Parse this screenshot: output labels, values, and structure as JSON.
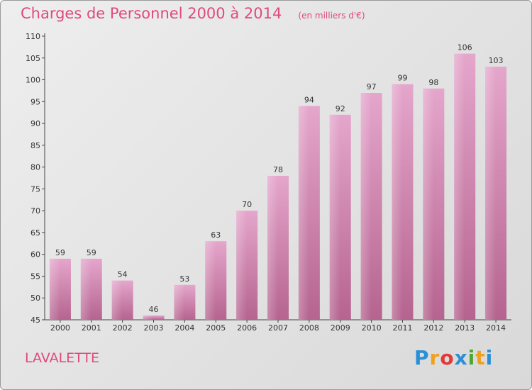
{
  "chart_data": {
    "type": "bar",
    "title": "Charges de Personnel 2000 à 2014",
    "subtitle": "(en milliers d'€)",
    "categories": [
      "2000",
      "2001",
      "2002",
      "2003",
      "2004",
      "2005",
      "2006",
      "2007",
      "2008",
      "2009",
      "2010",
      "2011",
      "2012",
      "2013",
      "2014"
    ],
    "values": [
      59,
      59,
      54,
      46,
      53,
      63,
      70,
      78,
      94,
      92,
      97,
      99,
      98,
      106,
      103
    ],
    "ylim": [
      45,
      110
    ],
    "yticks": [
      45,
      50,
      55,
      60,
      65,
      70,
      75,
      80,
      85,
      90,
      95,
      100,
      105,
      110
    ],
    "xlabel": "",
    "ylabel": "",
    "bar_color": "#d98bb6",
    "grid": false
  },
  "footer": {
    "commune": "LAVALETTE"
  },
  "logo": {
    "letters": [
      "P",
      "r",
      "o",
      "x",
      "i",
      "t",
      "i"
    ],
    "colors": [
      "#2b8fd6",
      "#f0a020",
      "#e03a3a",
      "#2b8fd6",
      "#4aa832",
      "#f0a020",
      "#2b8fd6"
    ]
  },
  "colors": {
    "accent": "#e04a7a"
  }
}
